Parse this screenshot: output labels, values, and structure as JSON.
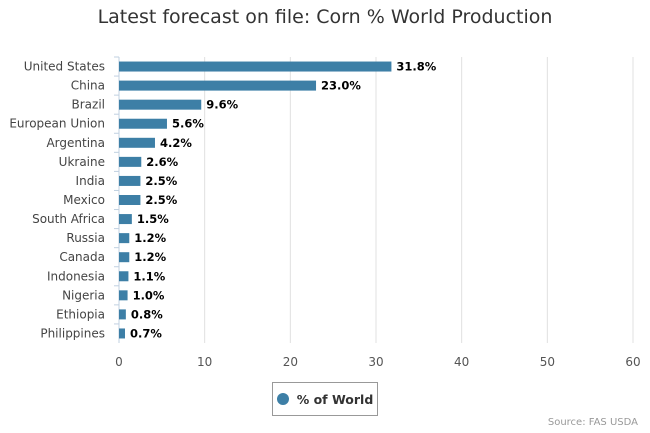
{
  "chart_data": {
    "type": "bar",
    "orientation": "horizontal",
    "title": "Latest forecast on file: Corn % World Production",
    "categories": [
      "United States",
      "China",
      "Brazil",
      "European Union",
      "Argentina",
      "Ukraine",
      "India",
      "Mexico",
      "South Africa",
      "Russia",
      "Canada",
      "Indonesia",
      "Nigeria",
      "Ethiopia",
      "Philippines"
    ],
    "series": [
      {
        "name": "% of World",
        "color": "#3d7fa6",
        "values": [
          31.8,
          23.0,
          9.6,
          5.6,
          4.2,
          2.6,
          2.5,
          2.5,
          1.5,
          1.2,
          1.2,
          1.1,
          1.0,
          0.8,
          0.7
        ],
        "labels": [
          "31.8%",
          "23.0%",
          "9.6%",
          "5.6%",
          "4.2%",
          "2.6%",
          "2.5%",
          "2.5%",
          "1.5%",
          "1.2%",
          "1.2%",
          "1.1%",
          "1.0%",
          "0.8%",
          "0.7%"
        ]
      }
    ],
    "xlim": [
      0,
      60
    ],
    "xticks": [
      0,
      10,
      20,
      30,
      40,
      50,
      60
    ],
    "xlabel": "",
    "ylabel": "",
    "grid": true,
    "legend_position": "bottom-center"
  },
  "source": "Source: FAS USDA"
}
